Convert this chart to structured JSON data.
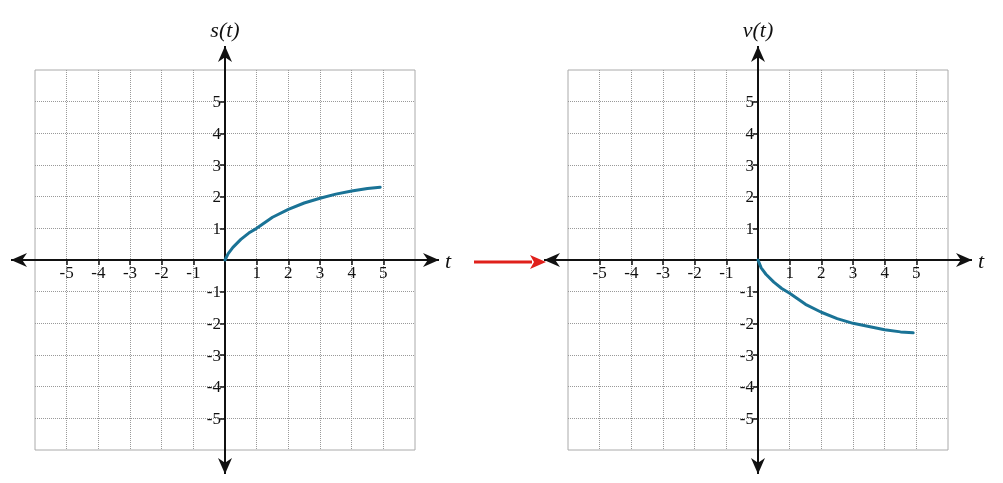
{
  "chart_data": [
    {
      "type": "line",
      "xlabel": "t",
      "ylabel": "s(t)",
      "xlim": [
        -6,
        6
      ],
      "ylim": [
        -6,
        6
      ],
      "xticks": [
        -5,
        -4,
        -3,
        -2,
        -1,
        1,
        2,
        3,
        4,
        5
      ],
      "yticks": [
        -5,
        -4,
        -3,
        -2,
        -1,
        1,
        2,
        3,
        4,
        5
      ],
      "grid": true,
      "marker": "none",
      "line_style": "solid",
      "series": [
        {
          "color": "#1a7396",
          "x": [
            0,
            0.1,
            0.25,
            0.5,
            0.75,
            1,
            1.5,
            2,
            2.5,
            3,
            3.5,
            4,
            4.5,
            4.9
          ],
          "values": [
            0,
            0.2,
            0.4,
            0.65,
            0.85,
            1.0,
            1.35,
            1.6,
            1.8,
            1.95,
            2.08,
            2.18,
            2.26,
            2.3
          ]
        }
      ]
    },
    {
      "type": "line",
      "xlabel": "t",
      "ylabel": "v(t)",
      "xlim": [
        -6,
        6
      ],
      "ylim": [
        -6,
        6
      ],
      "xticks": [
        -5,
        -4,
        -3,
        -2,
        -1,
        1,
        2,
        3,
        4,
        5
      ],
      "yticks": [
        -5,
        -4,
        -3,
        -2,
        -1,
        1,
        2,
        3,
        4,
        5
      ],
      "grid": true,
      "marker": "none",
      "line_style": "solid",
      "series": [
        {
          "color": "#1a7396",
          "x": [
            0,
            0.1,
            0.25,
            0.5,
            0.75,
            1,
            1.5,
            2,
            2.5,
            3,
            3.5,
            4,
            4.5,
            4.9
          ],
          "values": [
            0,
            -0.25,
            -0.45,
            -0.7,
            -0.9,
            -1.05,
            -1.4,
            -1.65,
            -1.85,
            -2.0,
            -2.1,
            -2.2,
            -2.27,
            -2.3
          ]
        }
      ]
    }
  ]
}
